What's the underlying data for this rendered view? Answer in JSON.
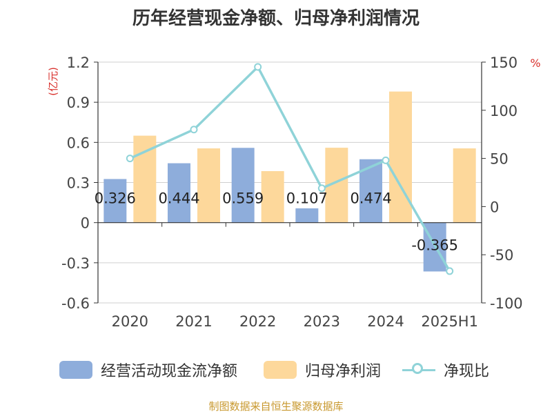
{
  "title": "历年经营现金净额、归母净利润情况",
  "source": "制图数据来自恒生聚源数据库",
  "chart_data": {
    "type": "bar",
    "categories": [
      "2020",
      "2021",
      "2022",
      "2023",
      "2024",
      "2025H1"
    ],
    "y_left": {
      "label": "(亿元)",
      "ylim": [
        -0.6,
        1.2
      ],
      "ticks": [
        "1.2",
        "0.9",
        "0.6",
        "0.3",
        "0",
        "-0.3",
        "-0.6"
      ]
    },
    "y_right": {
      "label": "%",
      "ylim": [
        -100,
        150
      ],
      "ticks": [
        "150",
        "100",
        "50",
        "0",
        "-50",
        "-100"
      ]
    },
    "series": [
      {
        "name": "经营活动现金流净额",
        "type": "bar",
        "axis": "left",
        "color": "#8eaddb",
        "values": [
          0.326,
          0.444,
          0.559,
          0.107,
          0.474,
          -0.365
        ],
        "labels": [
          "0.326",
          "0.444",
          "0.559",
          "0.107",
          "0.474",
          "-0.365"
        ]
      },
      {
        "name": "归母净利润",
        "type": "bar",
        "axis": "left",
        "color": "#fdd89b",
        "values": [
          0.65,
          0.555,
          0.385,
          0.56,
          0.98,
          0.555
        ]
      },
      {
        "name": "净现比",
        "type": "line",
        "axis": "right",
        "color": "#8fd3d8",
        "values": [
          50,
          80,
          145,
          19,
          48,
          -67
        ]
      }
    ],
    "grid": true,
    "legend_position": "bottom"
  }
}
